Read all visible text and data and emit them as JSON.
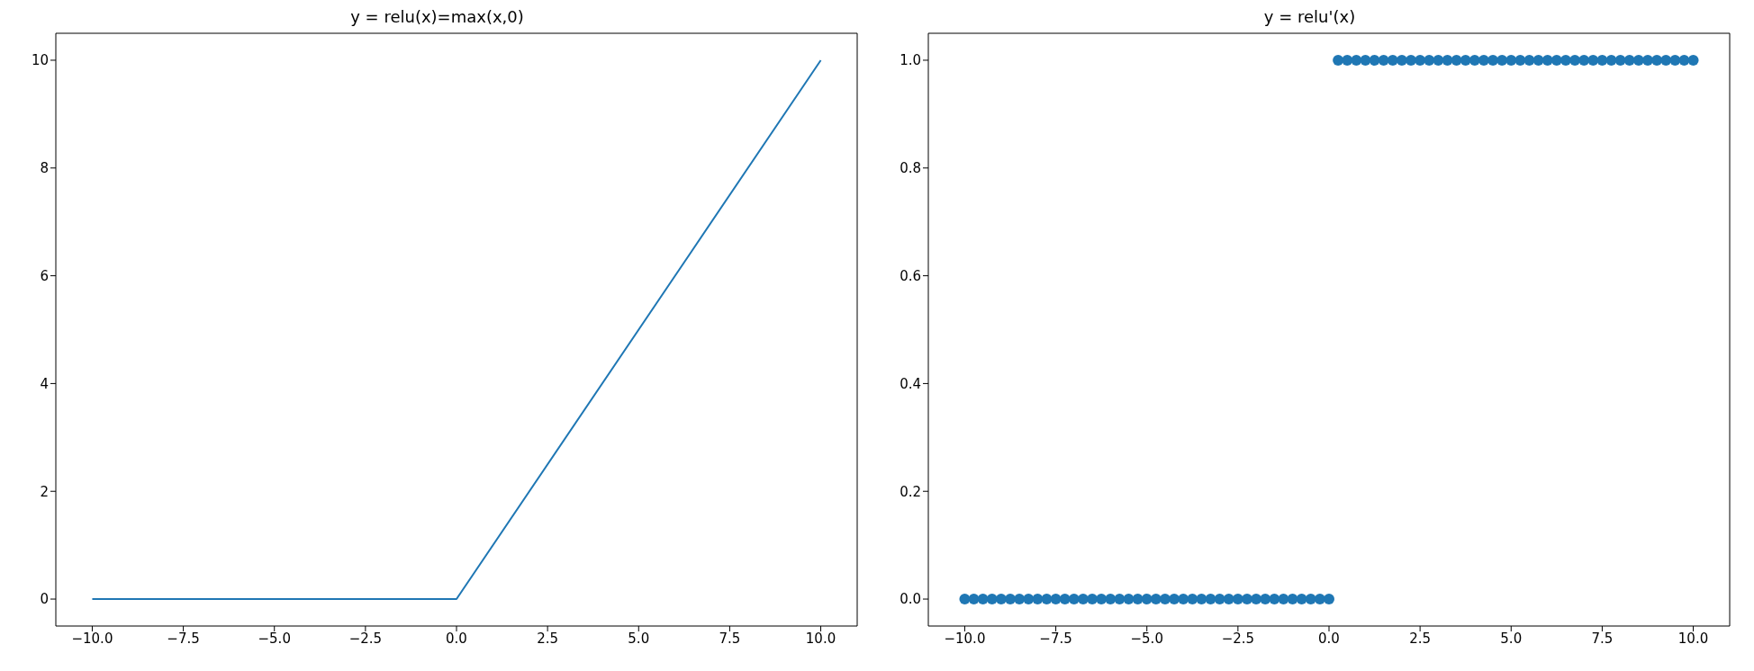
{
  "chart_data": [
    {
      "type": "line",
      "title": "y = relu(x)=max(x,0)",
      "x": [
        -10,
        0,
        10
      ],
      "series": [
        {
          "color": "#1f77b4",
          "values": [
            0,
            0,
            10
          ]
        }
      ],
      "xlim": [
        -11,
        11
      ],
      "ylim": [
        -0.5,
        10.5
      ],
      "xticks": [
        {
          "value": -10,
          "label": "−10.0"
        },
        {
          "value": -7.5,
          "label": "−7.5"
        },
        {
          "value": -5,
          "label": "−5.0"
        },
        {
          "value": -2.5,
          "label": "−2.5"
        },
        {
          "value": 0,
          "label": "0.0"
        },
        {
          "value": 2.5,
          "label": "2.5"
        },
        {
          "value": 5,
          "label": "5.0"
        },
        {
          "value": 7.5,
          "label": "7.5"
        },
        {
          "value": 10,
          "label": "10.0"
        }
      ],
      "yticks": [
        0,
        2,
        4,
        6,
        8,
        10
      ]
    },
    {
      "type": "scatter",
      "title": "y = relu'(x)",
      "marker": "circle",
      "x": [
        -10,
        -9.75,
        -9.5,
        -9.25,
        -9,
        -8.75,
        -8.5,
        -8.25,
        -8,
        -7.75,
        -7.5,
        -7.25,
        -7,
        -6.75,
        -6.5,
        -6.25,
        -6,
        -5.75,
        -5.5,
        -5.25,
        -5,
        -4.75,
        -4.5,
        -4.25,
        -4,
        -3.75,
        -3.5,
        -3.25,
        -3,
        -2.75,
        -2.5,
        -2.25,
        -2,
        -1.75,
        -1.5,
        -1.25,
        -1,
        -0.75,
        -0.5,
        -0.25,
        0,
        0.25,
        0.5,
        0.75,
        1,
        1.25,
        1.5,
        1.75,
        2,
        2.25,
        2.5,
        2.75,
        3,
        3.25,
        3.5,
        3.75,
        4,
        4.25,
        4.5,
        4.75,
        5,
        5.25,
        5.5,
        5.75,
        6,
        6.25,
        6.5,
        6.75,
        7,
        7.25,
        7.5,
        7.75,
        8,
        8.25,
        8.5,
        8.75,
        9,
        9.25,
        9.5,
        9.75,
        10
      ],
      "series": [
        {
          "color": "#1f77b4",
          "values": [
            0,
            0,
            0,
            0,
            0,
            0,
            0,
            0,
            0,
            0,
            0,
            0,
            0,
            0,
            0,
            0,
            0,
            0,
            0,
            0,
            0,
            0,
            0,
            0,
            0,
            0,
            0,
            0,
            0,
            0,
            0,
            0,
            0,
            0,
            0,
            0,
            0,
            0,
            0,
            0,
            0,
            1,
            1,
            1,
            1,
            1,
            1,
            1,
            1,
            1,
            1,
            1,
            1,
            1,
            1,
            1,
            1,
            1,
            1,
            1,
            1,
            1,
            1,
            1,
            1,
            1,
            1,
            1,
            1,
            1,
            1,
            1,
            1,
            1,
            1,
            1,
            1,
            1,
            1,
            1,
            1
          ]
        }
      ],
      "xlim": [
        -11,
        11
      ],
      "ylim": [
        -0.05,
        1.05
      ],
      "xticks": [
        {
          "value": -10,
          "label": "−10.0"
        },
        {
          "value": -7.5,
          "label": "−7.5"
        },
        {
          "value": -5,
          "label": "−5.0"
        },
        {
          "value": -2.5,
          "label": "−2.5"
        },
        {
          "value": 0,
          "label": "0.0"
        },
        {
          "value": 2.5,
          "label": "2.5"
        },
        {
          "value": 5,
          "label": "5.0"
        },
        {
          "value": 7.5,
          "label": "7.5"
        },
        {
          "value": 10,
          "label": "10.0"
        }
      ],
      "yticks": [
        {
          "value": 0,
          "label": "0.0"
        },
        {
          "value": 0.2,
          "label": "0.2"
        },
        {
          "value": 0.4,
          "label": "0.4"
        },
        {
          "value": 0.6,
          "label": "0.6"
        },
        {
          "value": 0.8,
          "label": "0.8"
        },
        {
          "value": 1,
          "label": "1.0"
        }
      ]
    }
  ]
}
